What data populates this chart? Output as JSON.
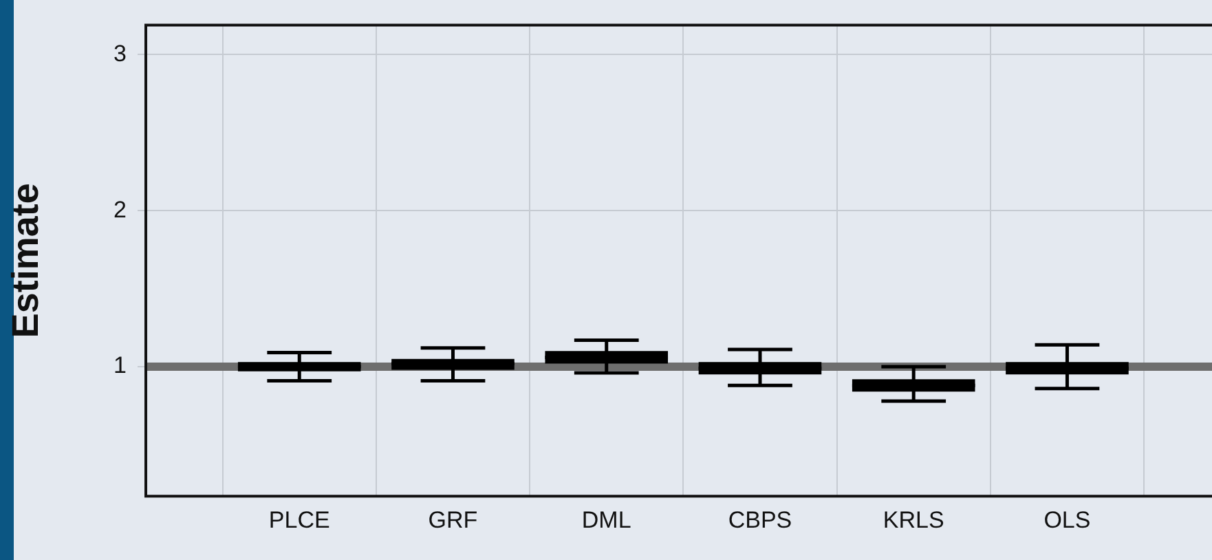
{
  "chart_data": {
    "type": "box",
    "ylabel": "Estimate",
    "categories": [
      "PLCE",
      "GRF",
      "DML",
      "CBPS",
      "KRLS",
      "OLS"
    ],
    "color": "#000000",
    "boxes": [
      {
        "low": 0.91,
        "q1": 0.97,
        "median": 1.0,
        "q3": 1.03,
        "high": 1.09
      },
      {
        "low": 0.91,
        "q1": 0.98,
        "median": 1.02,
        "q3": 1.05,
        "high": 1.12
      },
      {
        "low": 0.96,
        "q1": 1.02,
        "median": 1.06,
        "q3": 1.1,
        "high": 1.17
      },
      {
        "low": 0.88,
        "q1": 0.95,
        "median": 0.99,
        "q3": 1.03,
        "high": 1.11
      },
      {
        "low": 0.78,
        "q1": 0.84,
        "median": 0.88,
        "q3": 0.92,
        "high": 1.0
      },
      {
        "low": 0.86,
        "q1": 0.95,
        "median": 0.99,
        "q3": 1.03,
        "high": 1.14
      }
    ],
    "ylim": [
      0.17,
      3.19
    ],
    "yticks": [
      1,
      2,
      3
    ],
    "grid": true,
    "ref_lines": [
      {
        "axis": "y",
        "value": 1,
        "color": "#6e6e6e"
      }
    ],
    "legend": false
  }
}
